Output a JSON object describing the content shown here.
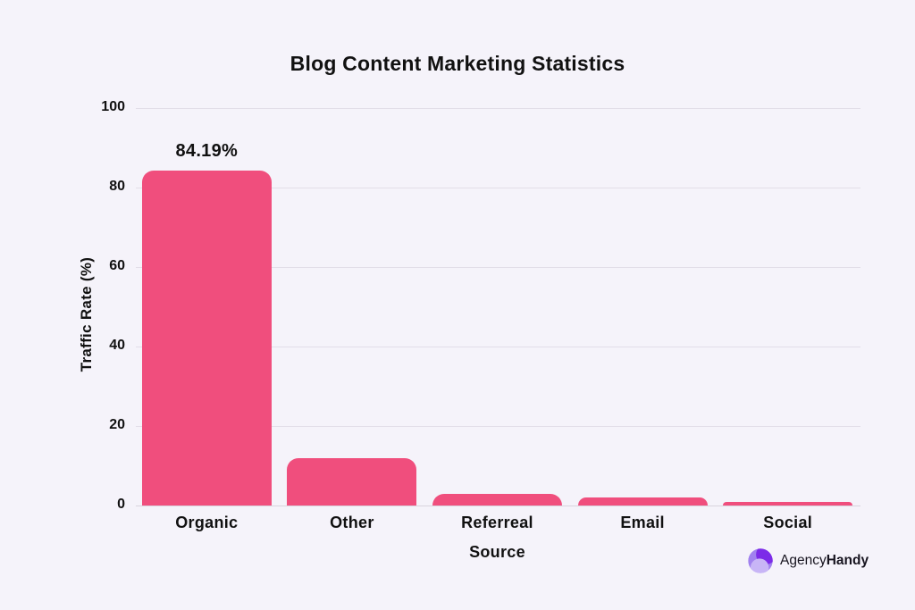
{
  "chart_data": {
    "type": "bar",
    "title": "Blog Content Marketing Statistics",
    "xlabel": "Source",
    "ylabel": "Traffic Rate (%)",
    "categories": [
      "Organic",
      "Other",
      "Referreal",
      "Email",
      "Social"
    ],
    "values": [
      84.19,
      12,
      3,
      2,
      1
    ],
    "data_labels": [
      "84.19%",
      "",
      "",
      "",
      ""
    ],
    "ylim": [
      0,
      100
    ],
    "yticks": [
      0,
      20,
      40,
      60,
      80,
      100
    ],
    "grid": true,
    "legend": false,
    "bar_color": "#F04E7D",
    "background_color": "#F5F3FA",
    "gridline_color": "#E2DEE8",
    "text_color": "#111111"
  },
  "branding": {
    "logo_text_regular": "Agency",
    "logo_text_bold": "Handy",
    "icon_name": "agencyhandy-swirl-icon",
    "icon_colors": [
      "#7C2BE8",
      "#A181EF",
      "#C8B5F6"
    ]
  }
}
